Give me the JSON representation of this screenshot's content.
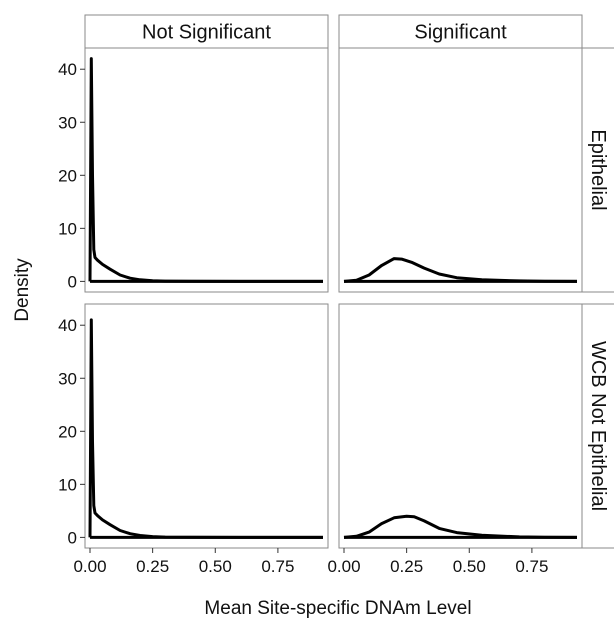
{
  "chart_data": {
    "type": "line",
    "facet_cols": [
      "Not Significant",
      "Significant"
    ],
    "facet_rows": [
      "Epithelial",
      "WCB Not Epithelial"
    ],
    "xlabel": "Mean Site-specific DNAm Level",
    "ylabel": "Density",
    "xlim": [
      -0.02,
      0.95
    ],
    "ylim": [
      -2,
      44
    ],
    "x_ticks": [
      0,
      0.25,
      0.5,
      0.75
    ],
    "x_tick_labels": [
      "0.00",
      "0.25",
      "0.50",
      "0.75"
    ],
    "y_ticks": [
      0,
      10,
      20,
      30,
      40
    ],
    "y_tick_labels": [
      "0",
      "10",
      "20",
      "30",
      "40"
    ],
    "grid": false,
    "panels": [
      {
        "row": "Epithelial",
        "col": "Not Significant",
        "x": [
          0,
          0.005,
          0.01,
          0.015,
          0.02,
          0.03,
          0.05,
          0.08,
          0.12,
          0.16,
          0.2,
          0.25,
          0.3,
          0.4,
          0.6,
          0.93
        ],
        "y": [
          0,
          42,
          20,
          6,
          4.5,
          4,
          3.2,
          2.3,
          1.2,
          0.6,
          0.3,
          0.12,
          0.05,
          0.02,
          0,
          0
        ]
      },
      {
        "row": "Epithelial",
        "col": "Significant",
        "x": [
          0,
          0.05,
          0.1,
          0.15,
          0.2,
          0.23,
          0.27,
          0.32,
          0.38,
          0.45,
          0.55,
          0.7,
          0.8,
          0.93
        ],
        "y": [
          0,
          0.2,
          1.2,
          3,
          4.3,
          4.2,
          3.6,
          2.5,
          1.4,
          0.7,
          0.3,
          0.1,
          0.03,
          0
        ]
      },
      {
        "row": "WCB Not Epithelial",
        "col": "Not Significant",
        "x": [
          0,
          0.005,
          0.01,
          0.015,
          0.02,
          0.03,
          0.05,
          0.08,
          0.12,
          0.16,
          0.2,
          0.25,
          0.3,
          0.4,
          0.6,
          0.93
        ],
        "y": [
          0,
          41,
          18,
          6,
          4.6,
          4.1,
          3.3,
          2.4,
          1.3,
          0.7,
          0.35,
          0.15,
          0.05,
          0.02,
          0,
          0
        ]
      },
      {
        "row": "WCB Not Epithelial",
        "col": "Significant",
        "x": [
          0,
          0.05,
          0.1,
          0.15,
          0.2,
          0.25,
          0.28,
          0.32,
          0.38,
          0.45,
          0.55,
          0.7,
          0.8,
          0.93
        ],
        "y": [
          0,
          0.2,
          1.0,
          2.6,
          3.7,
          4.0,
          3.9,
          3.1,
          1.7,
          0.9,
          0.4,
          0.1,
          0.03,
          0
        ]
      }
    ]
  }
}
